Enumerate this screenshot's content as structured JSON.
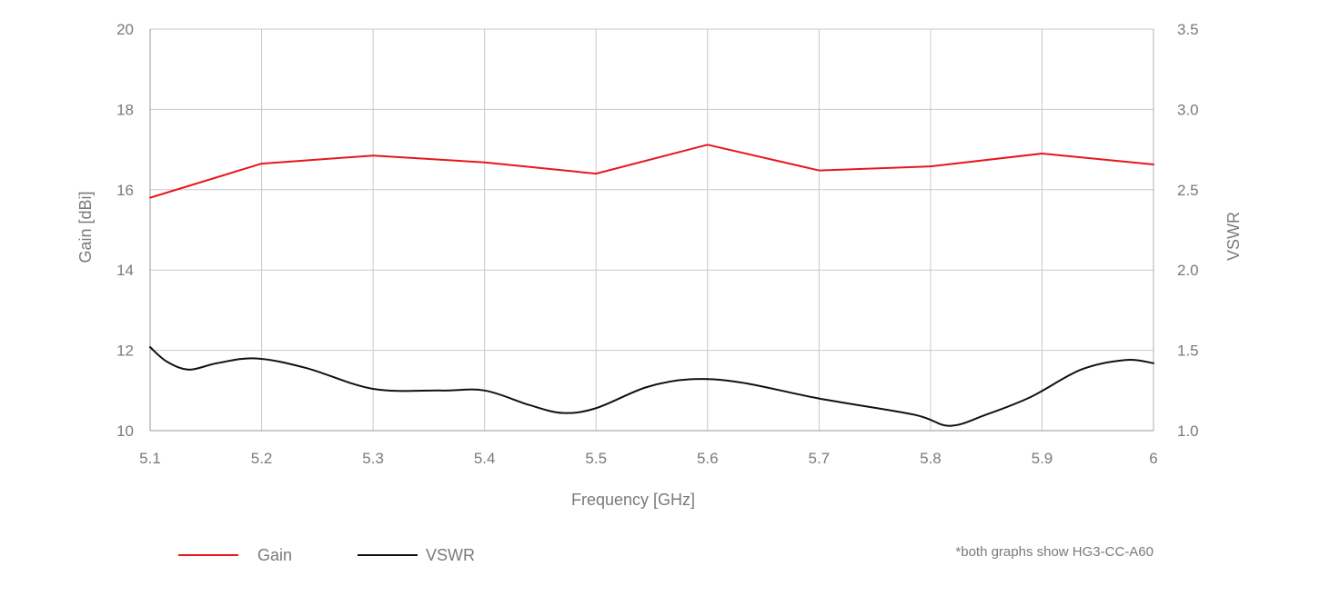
{
  "chart_data": {
    "type": "line",
    "title": "",
    "xlabel": "Frequency [GHz]",
    "ylabel": "Gain [dBi]",
    "y2label": "VSWR",
    "xlim": [
      5.1,
      6.0
    ],
    "ylim": [
      10,
      20
    ],
    "y2lim": [
      1.0,
      3.5
    ],
    "x_ticks": [
      "5.1",
      "5.2",
      "5.3",
      "5.4",
      "5.5",
      "5.6",
      "5.7",
      "5.8",
      "5.9",
      "6"
    ],
    "x_tick_values": [
      5.1,
      5.2,
      5.3,
      5.4,
      5.5,
      5.6,
      5.7,
      5.8,
      5.9,
      6.0
    ],
    "y_ticks": [
      "10",
      "12",
      "14",
      "16",
      "18",
      "20"
    ],
    "y_tick_values": [
      10,
      12,
      14,
      16,
      18,
      20
    ],
    "y2_ticks": [
      "1.0",
      "1.5",
      "2.0",
      "2.5",
      "3.0",
      "3.5"
    ],
    "y2_tick_values": [
      1.0,
      1.5,
      2.0,
      2.5,
      3.0,
      3.5
    ],
    "grid": true,
    "legend_position": "bottom-left",
    "series": [
      {
        "name": "Gain",
        "axis": "left",
        "color": "#e8161b",
        "x": [
          5.1,
          5.2,
          5.3,
          5.4,
          5.5,
          5.6,
          5.7,
          5.8,
          5.9,
          6.0
        ],
        "values": [
          15.8,
          16.65,
          16.85,
          16.68,
          16.4,
          17.12,
          16.48,
          16.58,
          16.9,
          16.63
        ]
      },
      {
        "name": "VSWR",
        "axis": "right",
        "color": "#111111",
        "smooth": true,
        "x": [
          5.1,
          5.115,
          5.135,
          5.16,
          5.195,
          5.24,
          5.3,
          5.36,
          5.4,
          5.44,
          5.47,
          5.5,
          5.545,
          5.585,
          5.63,
          5.7,
          5.785,
          5.817,
          5.85,
          5.89,
          5.935,
          5.975,
          6.0
        ],
        "values": [
          1.52,
          1.43,
          1.38,
          1.42,
          1.45,
          1.39,
          1.26,
          1.25,
          1.25,
          1.16,
          1.11,
          1.14,
          1.27,
          1.32,
          1.3,
          1.2,
          1.1,
          1.03,
          1.1,
          1.21,
          1.38,
          1.44,
          1.42
        ]
      }
    ],
    "note": "*both graphs show HG3-CC-A60"
  }
}
